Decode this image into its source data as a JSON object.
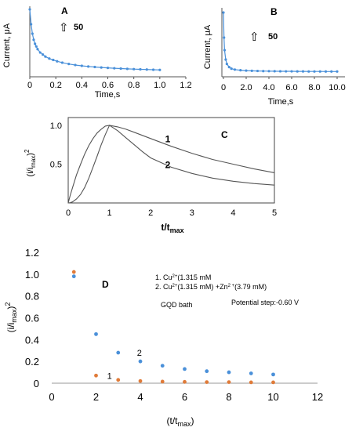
{
  "chart_data": [
    {
      "panel": "A",
      "type": "line",
      "xlabel": "Time,s",
      "ylabel": "Current, μA",
      "scale_bar": {
        "arrow": "⇧",
        "value": "50"
      },
      "xlim": [
        0,
        1.2
      ],
      "xticks": [
        "0",
        "0.2",
        "0.4",
        "0.6",
        "0.8",
        "1.0",
        "1.2"
      ],
      "color": "#4a90d9",
      "series": [
        {
          "x": [
            0.0,
            0.01,
            0.02,
            0.03,
            0.04,
            0.05,
            0.06,
            0.08,
            0.1,
            0.12,
            0.15,
            0.18,
            0.21,
            0.25,
            0.3,
            0.35,
            0.4,
            0.45,
            0.5,
            0.55,
            0.6,
            0.65,
            0.7,
            0.75,
            0.8,
            0.85,
            0.9,
            0.95,
            1.0
          ],
          "y": [
            100,
            78,
            64,
            55,
            49,
            45,
            41,
            36,
            33,
            30,
            27,
            25,
            23,
            21,
            19,
            17.5,
            16.3,
            15.3,
            14.5,
            13.8,
            13.2,
            12.7,
            12.2,
            11.8,
            11.4,
            11.1,
            10.8,
            10.5,
            10.2
          ]
        }
      ]
    },
    {
      "panel": "B",
      "type": "line",
      "xlabel": "Time,s",
      "ylabel": "Current, μA",
      "scale_bar": {
        "arrow": "⇧",
        "value": "50"
      },
      "xlim": [
        0,
        10
      ],
      "xticks": [
        "0",
        "2.0",
        "4.0",
        "6.0",
        "8.0",
        "10.0"
      ],
      "color": "#4a90d9",
      "series": [
        {
          "x": [
            0,
            0.05,
            0.1,
            0.2,
            0.3,
            0.5,
            0.7,
            1.0,
            1.5,
            2.0,
            2.5,
            3.0,
            3.5,
            4.0,
            4.5,
            5.0,
            5.5,
            6.0,
            6.5,
            7.0,
            7.5,
            8.0,
            8.5,
            9.0,
            9.5,
            10.0
          ],
          "y": [
            100,
            60,
            40,
            25,
            18,
            13,
            10.5,
            9,
            8,
            7.4,
            7,
            6.8,
            6.6,
            6.5,
            6.4,
            6.3,
            6.2,
            6.2,
            6.1,
            6.1,
            6,
            6,
            6,
            5.9,
            5.9,
            5.9
          ]
        }
      ]
    },
    {
      "panel": "C",
      "type": "line",
      "xlabel_main": "t/t",
      "xlabel_sub": "max",
      "ylabel_pre": "(i/i",
      "ylabel_sub": "max",
      "ylabel_post": ")",
      "ylabel_sup": "2",
      "xlim": [
        0,
        5
      ],
      "ylim": [
        0,
        1.1
      ],
      "xticks": [
        "0",
        "1",
        "2",
        "3",
        "4",
        "5"
      ],
      "yticks": [
        {
          "label": "1.0",
          "v": 1.0
        },
        {
          "label": "0.5",
          "v": 0.5
        }
      ],
      "color": "#555555",
      "series": [
        {
          "name": "1",
          "x": [
            0.05,
            0.1,
            0.2,
            0.3,
            0.4,
            0.5,
            0.6,
            0.7,
            0.8,
            0.9,
            1.0,
            1.2,
            1.4,
            1.6,
            1.8,
            2.0,
            2.5,
            3.0,
            3.5,
            4.0,
            4.5,
            5.0
          ],
          "y": [
            0.1,
            0.19,
            0.36,
            0.5,
            0.63,
            0.74,
            0.83,
            0.9,
            0.95,
            0.99,
            1.0,
            0.98,
            0.95,
            0.91,
            0.87,
            0.83,
            0.73,
            0.64,
            0.56,
            0.5,
            0.44,
            0.39
          ]
        },
        {
          "name": "2",
          "x": [
            0.05,
            0.1,
            0.2,
            0.3,
            0.4,
            0.5,
            0.6,
            0.7,
            0.8,
            0.9,
            1.0,
            1.2,
            1.4,
            1.6,
            1.8,
            2.0,
            2.5,
            3.0,
            3.5,
            4.0,
            4.5,
            5.0
          ],
          "y": [
            0.003,
            0.013,
            0.05,
            0.11,
            0.2,
            0.32,
            0.46,
            0.6,
            0.75,
            0.88,
            1.0,
            0.93,
            0.84,
            0.75,
            0.66,
            0.58,
            0.46,
            0.38,
            0.32,
            0.28,
            0.25,
            0.23
          ]
        }
      ]
    },
    {
      "panel": "D",
      "type": "scatter",
      "xlabel_pre": "(t/t",
      "xlabel_sub": "max",
      "xlabel_post": ")",
      "ylabel_pre": "(i/i",
      "ylabel_sub": "max",
      "ylabel_post": ")",
      "ylabel_sup": "2",
      "xlim": [
        0,
        12
      ],
      "ylim": [
        0,
        1.2
      ],
      "xticks": [
        "0",
        "2",
        "4",
        "6",
        "8",
        "10",
        "12"
      ],
      "yticks": [
        "0",
        "0.2",
        "0.4",
        "0.6",
        "0.8",
        "1.0",
        "1.2"
      ],
      "legend_lines": [
        {
          "pre": "1. Cu",
          "sup": "2+",
          "post": "(1.315 mM"
        },
        {
          "pre": "2. Cu",
          "sup": "2+",
          "post": "(1.315 mM) +Zn",
          "sup2": "2 +",
          "post2": "(3.79 mM)"
        }
      ],
      "annotations": [
        "GQD bath",
        "Potential step:-0.60 V"
      ],
      "series": [
        {
          "name": "1",
          "color": "#e07b39",
          "x": [
            1,
            2,
            3,
            4,
            5,
            6,
            7,
            8,
            9,
            10
          ],
          "y": [
            1.02,
            0.07,
            0.03,
            0.02,
            0.015,
            0.012,
            0.01,
            0.01,
            0.008,
            0.008
          ]
        },
        {
          "name": "2",
          "color": "#4a90d9",
          "x": [
            1,
            2,
            3,
            4,
            5,
            6,
            7,
            8,
            9,
            10
          ],
          "y": [
            0.98,
            0.45,
            0.28,
            0.2,
            0.16,
            0.13,
            0.11,
            0.1,
            0.09,
            0.08
          ]
        }
      ]
    }
  ]
}
